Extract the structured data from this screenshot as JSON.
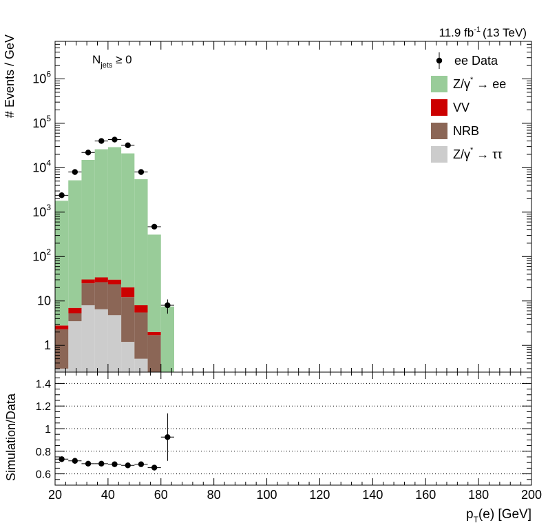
{
  "chart_data": {
    "type": "bar",
    "stacked": true,
    "lumi_label": "11.9 fb",
    "lumi_sup": "-1",
    "lumi_energy": "(13 TeV)",
    "selection_label": {
      "main": "N",
      "sub": "jets",
      "rest": " ≥ 0"
    },
    "ylabel_top": "# Events / GeV",
    "ylabel_bottom": "Simulation/Data",
    "xlabel": {
      "main": "p",
      "sub": "T",
      "rest": "(e) [GeV]"
    },
    "x_range": [
      20,
      200
    ],
    "y_range_top": [
      0.25,
      7000000
    ],
    "y_scale_top": "log",
    "y_range_bottom": [
      0.5,
      1.5
    ],
    "x_ticks": [
      "20",
      "40",
      "60",
      "80",
      "100",
      "120",
      "140",
      "160",
      "180",
      "200"
    ],
    "y_ticks_top": [
      {
        "value": 1,
        "base": "1",
        "exp": ""
      },
      {
        "value": 10,
        "base": "10",
        "exp": ""
      },
      {
        "value": 100,
        "base": "10",
        "exp": "2"
      },
      {
        "value": 1000,
        "base": "10",
        "exp": "3"
      },
      {
        "value": 10000,
        "base": "10",
        "exp": "4"
      },
      {
        "value": 100000,
        "base": "10",
        "exp": "5"
      },
      {
        "value": 1000000,
        "base": "10",
        "exp": "6"
      }
    ],
    "y_ticks_bottom": [
      "0.6",
      "0.8",
      "1",
      "1.2",
      "1.4"
    ],
    "bin_edges": [
      20,
      25,
      30,
      35,
      40,
      45,
      50,
      55,
      60,
      65
    ],
    "stack_series": [
      {
        "name": "Z/γ* → ττ",
        "legend_main": "Z/γ",
        "legend_sup": "*",
        "legend_rest": " → ττ",
        "color": "#cccccc",
        "values": [
          0.3,
          3.5,
          8.0,
          6.5,
          4.8,
          1.2,
          0.5,
          0.1,
          0
        ]
      },
      {
        "name": "NRB",
        "legend_main": "NRB",
        "legend_sup": "",
        "legend_rest": "",
        "color": "#8b6656",
        "values": [
          2.0,
          1.8,
          17.0,
          20.0,
          19.0,
          11.0,
          5.0,
          1.6,
          0
        ]
      },
      {
        "name": "VV",
        "legend_main": "VV",
        "legend_sup": "",
        "legend_rest": "",
        "color": "#cc0000",
        "values": [
          0.5,
          1.7,
          5.5,
          7.5,
          6.5,
          8.0,
          2.5,
          0.3,
          0
        ]
      },
      {
        "name": "Z/γ* → ee",
        "legend_main": "Z/γ",
        "legend_sup": "*",
        "legend_rest": " → ee",
        "color": "#99cc99",
        "values": [
          1800,
          5200,
          15000,
          26000,
          29000,
          21000,
          5500,
          310,
          7.5
        ]
      }
    ],
    "data_series": {
      "name": "ee Data",
      "x": [
        22.5,
        27.5,
        32.5,
        37.5,
        42.5,
        47.5,
        52.5,
        57.5,
        62.5
      ],
      "y": [
        2400,
        8000,
        22000,
        40000,
        43000,
        32000,
        8000,
        470,
        8
      ]
    },
    "ratio": {
      "x": [
        22.5,
        27.5,
        32.5,
        37.5,
        42.5,
        47.5,
        52.5,
        57.5,
        62.5
      ],
      "y": [
        0.73,
        0.715,
        0.69,
        0.69,
        0.685,
        0.675,
        0.685,
        0.655,
        0.925
      ],
      "err": [
        0.01,
        0.008,
        0.006,
        0.005,
        0.005,
        0.006,
        0.008,
        0.025,
        0.21
      ]
    },
    "ratio_gridlines": [
      0.6,
      0.8,
      1.0,
      1.2,
      1.4
    ],
    "legend_position": "top-right"
  }
}
